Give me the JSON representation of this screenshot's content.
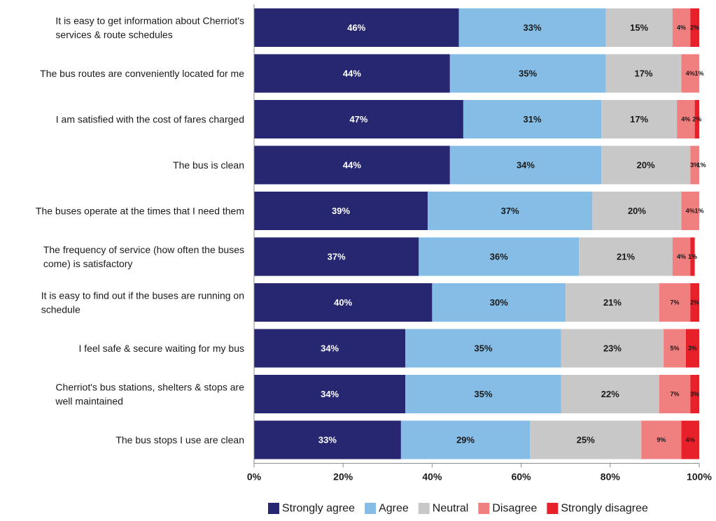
{
  "chart_data": {
    "type": "bar",
    "orientation": "horizontal",
    "stacked": true,
    "title": "",
    "xlabel": "",
    "ylabel": "",
    "xlim": [
      0,
      100
    ],
    "x_ticks": [
      "0%",
      "20%",
      "40%",
      "60%",
      "80%",
      "100%"
    ],
    "grid": false,
    "legend_position": "bottom",
    "categories": [
      [
        "It is easy to get information about Cherriot's",
        "services & route schedules"
      ],
      [
        "The bus routes are conveniently located for me"
      ],
      [
        "I am satisfied with the cost of fares charged"
      ],
      [
        "The bus is clean"
      ],
      [
        "The buses operate at the times that I need them"
      ],
      [
        "The frequency of service (how often the buses",
        "come) is satisfactory"
      ],
      [
        "It is easy to find out if the buses are running on",
        "schedule"
      ],
      [
        "I feel safe & secure waiting for my bus"
      ],
      [
        "Cherriot's bus stations, shelters & stops are",
        "well maintained"
      ],
      [
        "The bus stops I use are clean"
      ]
    ],
    "series": [
      {
        "name": "Strongly agree",
        "color": "#262671",
        "label_color": "#ffffff",
        "values": [
          46,
          44,
          47,
          44,
          39,
          37,
          40,
          34,
          34,
          33
        ]
      },
      {
        "name": "Agree",
        "color": "#85BDE6",
        "label_color": "#1a1a1a",
        "values": [
          33,
          35,
          31,
          34,
          37,
          36,
          30,
          35,
          35,
          29
        ]
      },
      {
        "name": "Neutral",
        "color": "#C8C8C8",
        "label_color": "#1a1a1a",
        "values": [
          15,
          17,
          17,
          20,
          20,
          21,
          21,
          23,
          22,
          25
        ]
      },
      {
        "name": "Disagree",
        "color": "#F08080",
        "label_color": "#1a1a1a",
        "values": [
          4,
          4,
          4,
          3,
          4,
          4,
          7,
          5,
          7,
          9
        ]
      },
      {
        "name": "Strongly disagree",
        "color": "#E8202A",
        "label_color": "#1a1a1a",
        "values": [
          2,
          1,
          2,
          1,
          1,
          1,
          2,
          3,
          3,
          4
        ]
      }
    ]
  }
}
